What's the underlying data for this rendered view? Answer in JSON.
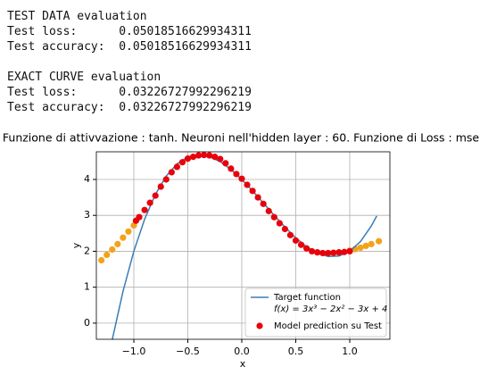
{
  "output_lines": [
    "TEST DATA evaluation",
    "Test loss:      0.05018516629934311",
    "Test accuracy:  0.05018516629934311",
    "",
    "EXACT CURVE evaluation",
    "Test loss:      0.03226727992296219",
    "Test accuracy:  0.03226727992296219"
  ],
  "chart_data": {
    "type": "scatter",
    "title": "Funzione di attivvazione : tanh. Neuroni nell'hidden layer : 60. Funzione di Loss : mse",
    "x_label": "x",
    "y_label": "y",
    "xlim": [
      -1.347,
      1.372
    ],
    "ylim": [
      -0.45,
      4.77
    ],
    "xticks": [
      {
        "value": -1.0,
        "label": "−1.0"
      },
      {
        "value": -0.5,
        "label": "−0.5"
      },
      {
        "value": 0.0,
        "label": "0.0"
      },
      {
        "value": 0.5,
        "label": "0.5"
      },
      {
        "value": 1.0,
        "label": "1.0"
      }
    ],
    "yticks": [
      0,
      1,
      2,
      3,
      4
    ],
    "grid": true,
    "legend": "lower right",
    "series": [
      {
        "name": "Target function",
        "legend_sub": "f(x) = 3x³ − 2x² − 3x + 4",
        "type": "line",
        "color": "#3a7db5",
        "x": [
          -1.2,
          -1.1,
          -1.0,
          -0.9,
          -0.8,
          -0.7,
          -0.6,
          -0.5,
          -0.4,
          -0.3,
          -0.2,
          -0.1,
          0,
          0.1,
          0.2,
          0.3,
          0.4,
          0.5,
          0.6,
          0.7,
          0.8,
          0.9,
          1.0,
          1.1,
          1.2,
          1.25
        ],
        "values": [
          -0.464,
          0.887,
          2,
          2.893,
          3.584,
          4.091,
          4.432,
          4.625,
          4.688,
          4.639,
          4.496,
          4.277,
          4,
          3.683,
          3.344,
          3.001,
          2.672,
          2.375,
          2.128,
          1.949,
          1.856,
          1.867,
          2,
          2.273,
          2.704,
          2.984
        ]
      },
      {
        "name": "Model prediction su Test",
        "type": "scatter",
        "color": "#e8000b",
        "x": [
          -0.98,
          -0.95,
          -0.9,
          -0.85,
          -0.8,
          -0.75,
          -0.7,
          -0.65,
          -0.6,
          -0.55,
          -0.5,
          -0.45,
          -0.4,
          -0.35,
          -0.3,
          -0.25,
          -0.2,
          -0.15,
          -0.1,
          -0.05,
          0,
          0.05,
          0.1,
          0.15,
          0.2,
          0.25,
          0.3,
          0.35,
          0.4,
          0.45,
          0.5,
          0.55,
          0.6,
          0.65,
          0.7,
          0.75,
          0.8,
          0.85,
          0.9,
          0.95,
          1.0
        ],
        "values": [
          2.85,
          2.95,
          3.15,
          3.35,
          3.55,
          3.8,
          4.0,
          4.2,
          4.35,
          4.48,
          4.58,
          4.63,
          4.67,
          4.68,
          4.67,
          4.63,
          4.57,
          4.45,
          4.3,
          4.15,
          4.02,
          3.85,
          3.68,
          3.5,
          3.32,
          3.12,
          2.95,
          2.78,
          2.62,
          2.45,
          2.3,
          2.18,
          2.08,
          2.0,
          1.97,
          1.95,
          1.95,
          1.96,
          1.97,
          1.98,
          2.0
        ]
      },
      {
        "type": "scatter",
        "color": "#f2a31b",
        "x": [
          -1.3,
          -1.25,
          -1.2,
          -1.15,
          -1.1,
          -1.05,
          -1.0,
          1.0,
          1.05,
          1.1,
          1.15,
          1.2,
          1.27
        ],
        "values": [
          1.75,
          1.9,
          2.05,
          2.2,
          2.38,
          2.55,
          2.72,
          2.02,
          2.06,
          2.1,
          2.15,
          2.2,
          2.28
        ]
      }
    ]
  }
}
